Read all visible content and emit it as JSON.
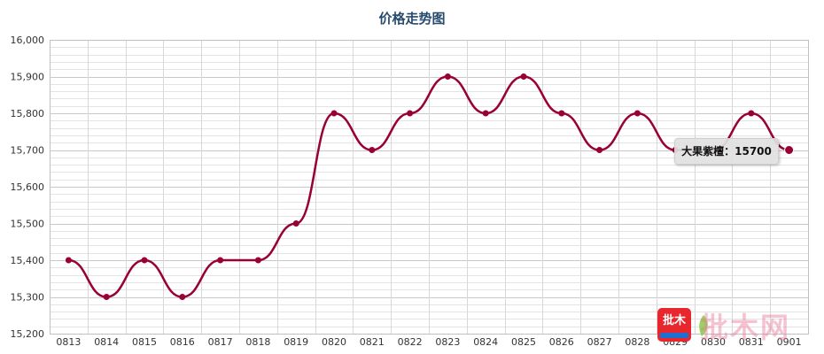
{
  "chart_data": {
    "type": "line",
    "title": "价格走势图",
    "categories": [
      "0813",
      "0814",
      "0815",
      "0816",
      "0817",
      "0818",
      "0819",
      "0820",
      "0821",
      "0822",
      "0823",
      "0824",
      "0825",
      "0826",
      "0827",
      "0828",
      "0829",
      "0830",
      "0831",
      "0901"
    ],
    "series": [
      {
        "name": "大果紫檀",
        "values": [
          15400,
          15300,
          15400,
          15300,
          15400,
          15400,
          15500,
          15800,
          15700,
          15800,
          15900,
          15800,
          15900,
          15800,
          15700,
          15800,
          15700,
          15700,
          15800,
          15700
        ]
      }
    ],
    "ylim": [
      15200,
      16000
    ],
    "yticks": [
      15200,
      15300,
      15400,
      15500,
      15600,
      15700,
      15800,
      15900,
      16000
    ],
    "ytick_labels": [
      "15,200",
      "15,300",
      "15,400",
      "15,500",
      "15,600",
      "15,700",
      "15,800",
      "15,900",
      "16,000"
    ],
    "grid": true,
    "line_color": "#990033",
    "tooltip": {
      "category_index": 19,
      "text": "大果紫檀：15700"
    }
  },
  "watermark": {
    "logo_text": "批木",
    "brand_text": "批木网"
  }
}
